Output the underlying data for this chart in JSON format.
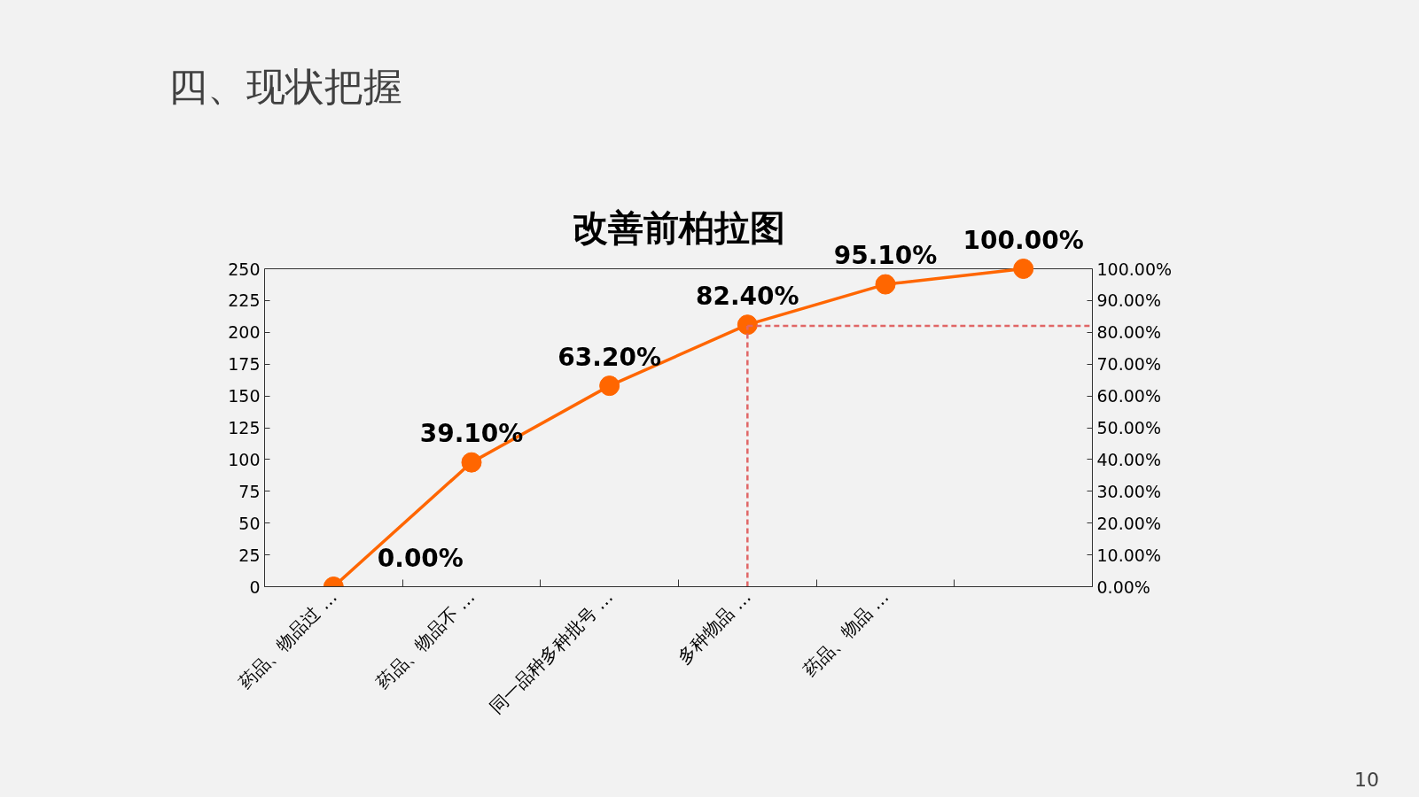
{
  "chart_data": {
    "type": "line",
    "title": "改善前柏拉图",
    "categories": [
      "药品、物品过 …",
      "药品、物品不 …",
      "同一品种多种批号 …",
      "多种物品 …",
      "药品、物品 …",
      null
    ],
    "series": [
      {
        "color": "#ff6600",
        "axis": "y2",
        "values": [
          0,
          39.1,
          63.2,
          82.4,
          95.1,
          100
        ],
        "value_labels": [
          "0.00%",
          "39.10%",
          "63.20%",
          "82.40%",
          "95.10%",
          "100.00%"
        ]
      }
    ],
    "ylim": [
      0,
      250
    ],
    "yticks": [
      0,
      25,
      50,
      75,
      100,
      125,
      150,
      175,
      200,
      225,
      250
    ],
    "y2lim": [
      0,
      100
    ],
    "y2ticks": [
      {
        "value": 0,
        "label": "0.00%"
      },
      {
        "value": 10,
        "label": "10.00%"
      },
      {
        "value": 20,
        "label": "20.00%"
      },
      {
        "value": 30,
        "label": "30.00%"
      },
      {
        "value": 40,
        "label": "40.00%"
      },
      {
        "value": 50,
        "label": "50.00%"
      },
      {
        "value": 60,
        "label": "60.00%"
      },
      {
        "value": 70,
        "label": "70.00%"
      },
      {
        "value": 80,
        "label": "80.00%"
      },
      {
        "value": 90,
        "label": "90.00%"
      },
      {
        "value": 100,
        "label": "100.00%"
      }
    ],
    "marker": "circle",
    "line_style": "solid",
    "grid": false,
    "ref_lines": [
      {
        "axis": "y2",
        "value": 82,
        "color": "#e06666",
        "line_style": "dashed"
      },
      {
        "axis": "x",
        "value": "多种物品 …",
        "color": "#e06666",
        "line_style": "dashed"
      }
    ],
    "annotations": [
      "四、现状把握",
      "10"
    ]
  }
}
